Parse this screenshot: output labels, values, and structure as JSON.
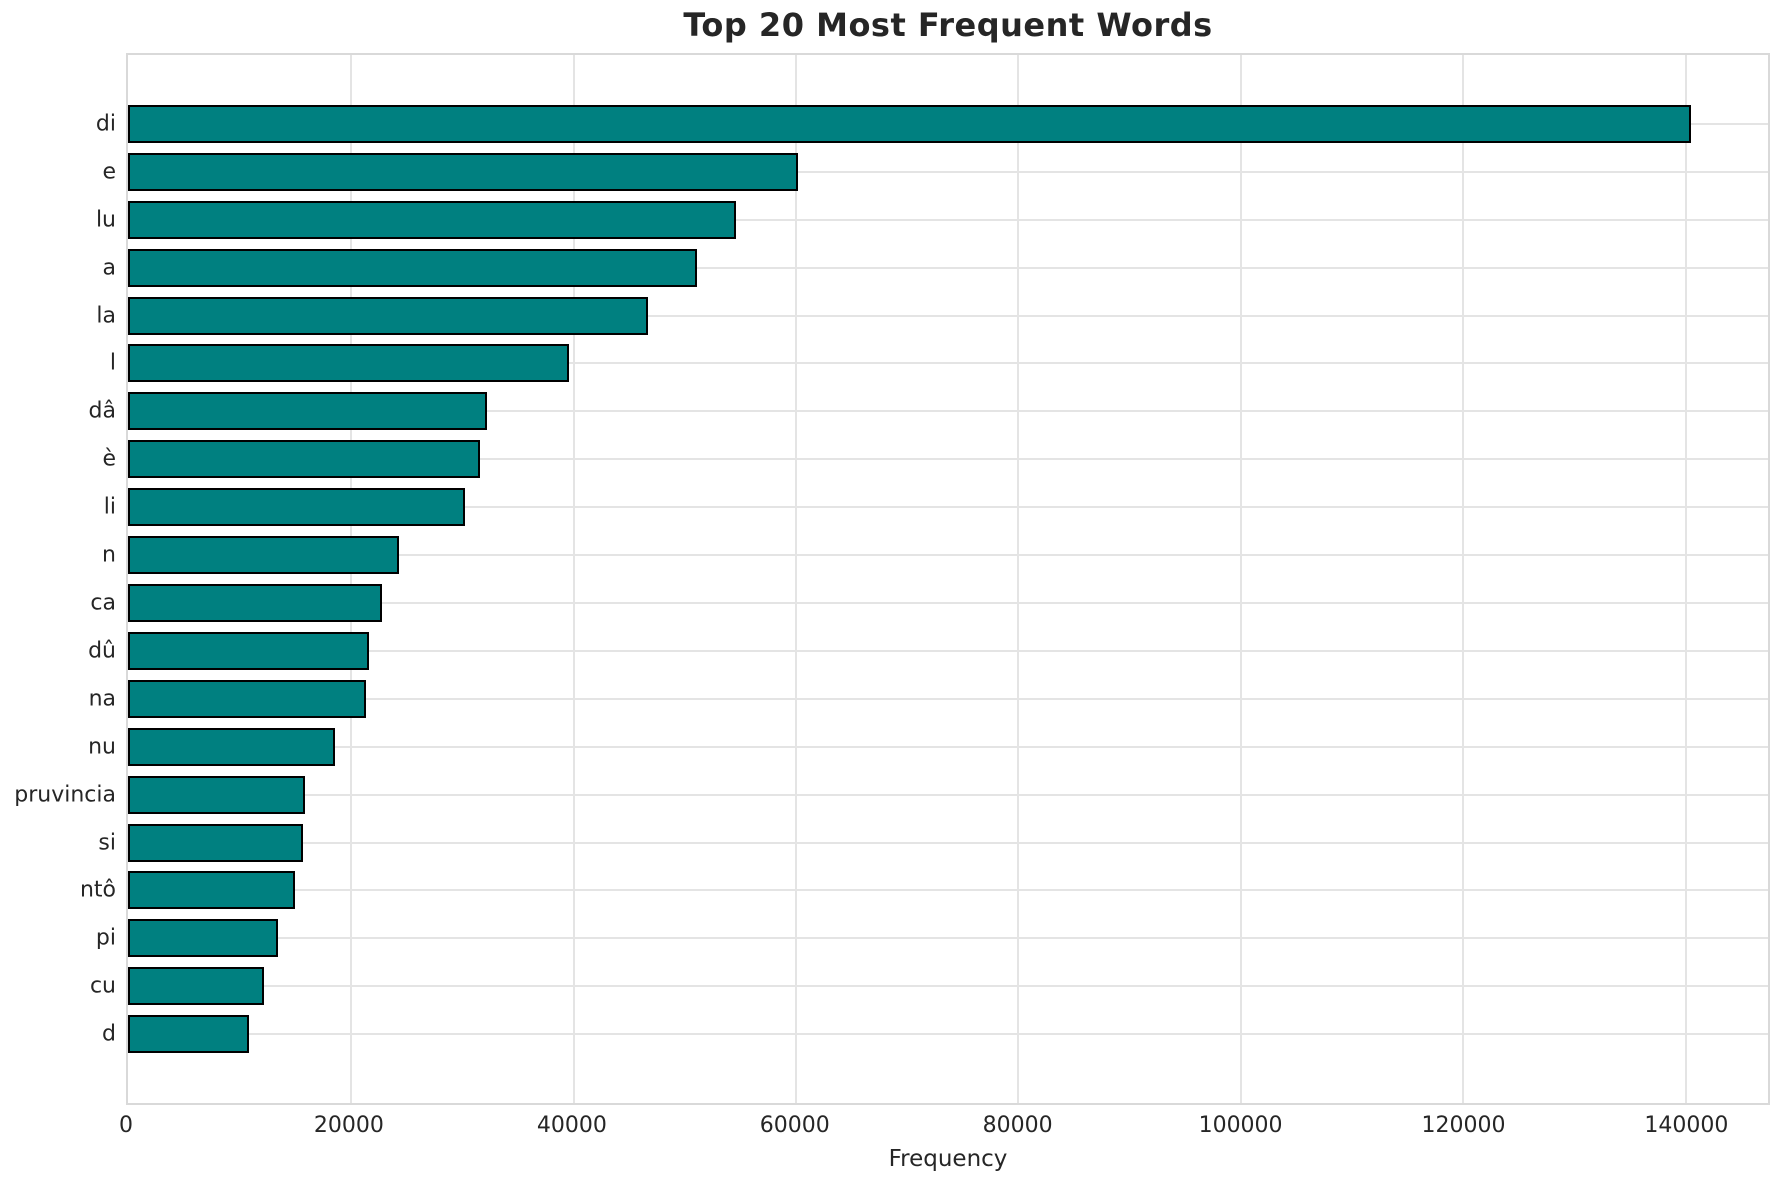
{
  "chart_data": {
    "type": "bar",
    "orientation": "horizontal",
    "title": "Top 20 Most Frequent Words",
    "xlabel": "Frequency",
    "ylabel": "",
    "categories": [
      "di",
      "e",
      "lu",
      "a",
      "la",
      "l",
      "dâ",
      "è",
      "li",
      "n",
      "ca",
      "dû",
      "na",
      "nu",
      "pruvincia",
      "si",
      "ntô",
      "pi",
      "cu",
      "d"
    ],
    "values": [
      140600,
      60300,
      54700,
      51200,
      46800,
      39700,
      32300,
      31700,
      30300,
      24400,
      22800,
      21700,
      21400,
      18600,
      15900,
      15700,
      15000,
      13500,
      12250,
      10900
    ],
    "xlim": [
      0,
      147500
    ],
    "x_ticks": [
      0,
      20000,
      40000,
      60000,
      80000,
      100000,
      120000,
      140000
    ],
    "grid": "both",
    "legend": "none",
    "bar_color": "#008080",
    "bar_edge_color": "#000000",
    "grid_color": "#e4e4e4",
    "text_color": "#262626"
  }
}
